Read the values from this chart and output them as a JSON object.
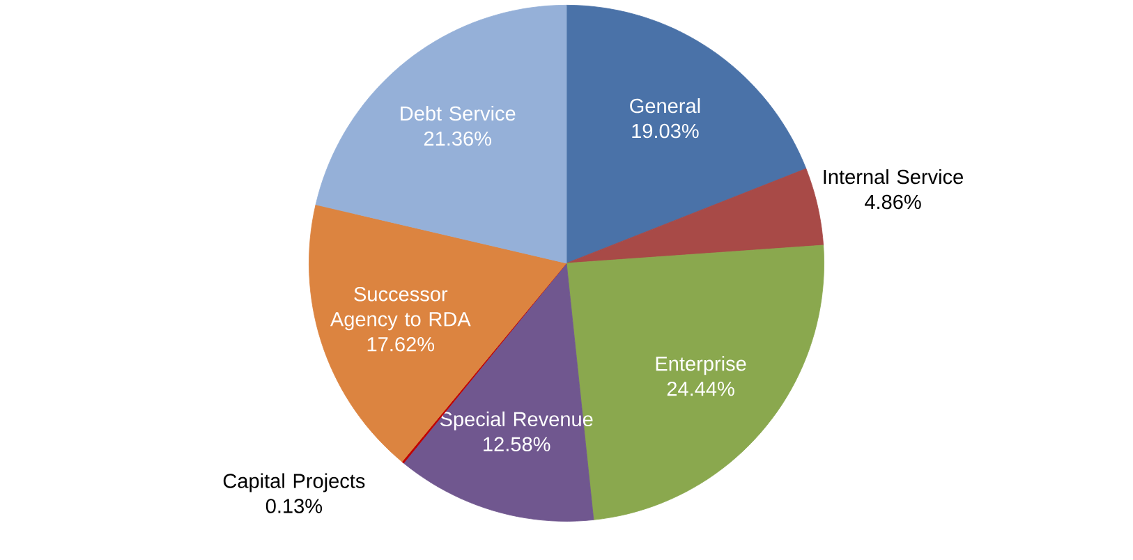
{
  "chart_data": {
    "type": "pie",
    "categories": [
      "General",
      "Internal Service",
      "Enterprise",
      "Special Revenue",
      "Capital Projects",
      "Successor Agency to RDA",
      "Debt Service"
    ],
    "values": [
      19.03,
      4.86,
      24.44,
      12.58,
      0.13,
      17.62,
      21.36
    ],
    "value_labels": [
      "19.03%",
      "4.86%",
      "24.44%",
      "12.58%",
      "0.13%",
      "17.62%",
      "21.36%"
    ],
    "colors": [
      "#4a72a8",
      "#a84a47",
      "#8aa84e",
      "#70578f",
      "#c00000",
      "#dc8440",
      "#95b0d8"
    ]
  }
}
